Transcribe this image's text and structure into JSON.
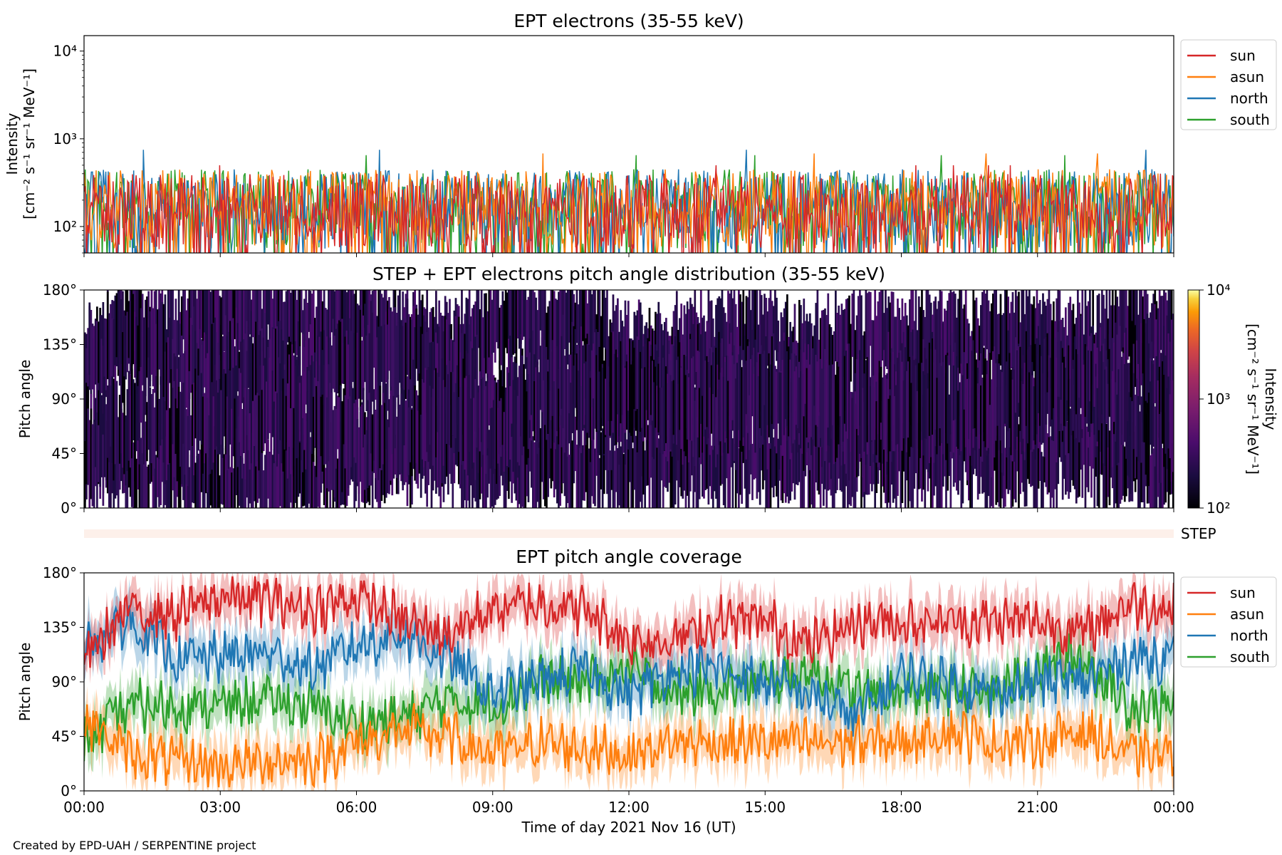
{
  "footer": {
    "credit": "Created by EPD-UAH / SERPENTINE project"
  },
  "x_axis": {
    "label": "Time of day 2021 Nov 16 (UT)",
    "ticks": [
      "00:00",
      "03:00",
      "06:00",
      "09:00",
      "12:00",
      "15:00",
      "18:00",
      "21:00",
      "00:00"
    ],
    "range_hours": [
      0,
      24
    ]
  },
  "colors": {
    "sun": "#d62728",
    "asun": "#ff7f0e",
    "north": "#1f77b4",
    "south": "#2ca02c",
    "step_strip": "#fdf0ea"
  },
  "chart_data": [
    {
      "type": "line",
      "panel": "intensity",
      "title": "EPT electrons (35-55 keV)",
      "ylabel": "Intensity",
      "ylabel_units": "[cm⁻² s⁻¹ sr⁻¹ MeV⁻¹]",
      "yscale": "log",
      "ylim": [
        50,
        15000
      ],
      "ytick_labels": [
        "10²",
        "10³",
        "10⁴"
      ],
      "ytick_values": [
        100,
        1000,
        10000
      ],
      "legend": [
        "sun",
        "asun",
        "north",
        "south"
      ],
      "legend_position": "outside right, top",
      "series_summary": [
        {
          "name": "sun",
          "typical_range": [
            55,
            400
          ],
          "peak": 500
        },
        {
          "name": "asun",
          "typical_range": [
            55,
            450
          ],
          "peak": 680
        },
        {
          "name": "north",
          "typical_range": [
            55,
            450
          ],
          "peak": 750
        },
        {
          "name": "south",
          "typical_range": [
            55,
            450
          ],
          "peak": 650
        }
      ]
    },
    {
      "type": "heatmap",
      "panel": "pad",
      "title": "STEP + EPT electrons pitch angle distribution (35-55 keV)",
      "ylabel": "Pitch angle",
      "ylim": [
        0,
        180
      ],
      "ytick_labels": [
        "0°",
        "45°",
        "90°",
        "135°",
        "180°"
      ],
      "ytick_values": [
        0,
        45,
        90,
        135,
        180
      ],
      "colorbar": {
        "label": "Intensity",
        "units": "[cm⁻² s⁻¹ sr⁻¹ MeV⁻¹]",
        "scale": "log",
        "range": [
          100,
          10000
        ],
        "tick_labels": [
          "10²",
          "10³",
          "10⁴"
        ],
        "colormap": "inferno"
      },
      "strip_label": "STEP"
    },
    {
      "type": "line",
      "panel": "coverage",
      "title": "EPT pitch angle coverage",
      "ylabel": "Pitch angle",
      "ylim": [
        0,
        180
      ],
      "ytick_labels": [
        "0°",
        "45°",
        "90°",
        "135°",
        "180°"
      ],
      "ytick_values": [
        0,
        45,
        90,
        135,
        180
      ],
      "legend": [
        "sun",
        "asun",
        "north",
        "south"
      ],
      "legend_position": "outside right, top",
      "series": [
        {
          "name": "sun",
          "x_hours": [
            0,
            1,
            2,
            3,
            4,
            5,
            6,
            7,
            8,
            9,
            10,
            11,
            12,
            13,
            14,
            15,
            16,
            17,
            18,
            19,
            20,
            21,
            22,
            23,
            24
          ],
          "values": [
            110,
            150,
            145,
            160,
            158,
            150,
            160,
            140,
            130,
            150,
            155,
            150,
            125,
            125,
            140,
            140,
            120,
            140,
            140,
            140,
            140,
            140,
            130,
            155,
            150
          ]
        },
        {
          "name": "asun",
          "x_hours": [
            0,
            1,
            2,
            3,
            4,
            5,
            6,
            7,
            8,
            9,
            10,
            11,
            12,
            13,
            14,
            15,
            16,
            17,
            18,
            19,
            20,
            21,
            22,
            23,
            24
          ],
          "values": [
            60,
            30,
            25,
            20,
            25,
            25,
            40,
            50,
            45,
            30,
            40,
            35,
            30,
            40,
            40,
            40,
            40,
            40,
            40,
            50,
            40,
            40,
            50,
            30,
            30
          ]
        },
        {
          "name": "north",
          "x_hours": [
            0,
            1,
            2,
            3,
            4,
            5,
            6,
            7,
            8,
            9,
            10,
            11,
            12,
            13,
            14,
            15,
            16,
            17,
            18,
            19,
            20,
            21,
            22,
            23,
            24
          ],
          "values": [
            120,
            140,
            110,
            110,
            115,
            100,
            120,
            130,
            110,
            80,
            90,
            100,
            80,
            100,
            100,
            90,
            80,
            60,
            95,
            90,
            80,
            90,
            90,
            110,
            110
          ]
        },
        {
          "name": "south",
          "x_hours": [
            0,
            1,
            2,
            3,
            4,
            5,
            6,
            7,
            8,
            9,
            10,
            11,
            12,
            13,
            14,
            15,
            16,
            17,
            18,
            19,
            20,
            21,
            22,
            23,
            24
          ],
          "values": [
            40,
            70,
            70,
            70,
            75,
            70,
            55,
            60,
            75,
            70,
            90,
            90,
            100,
            80,
            85,
            90,
            100,
            80,
            80,
            85,
            80,
            100,
            110,
            70,
            70
          ]
        }
      ]
    }
  ]
}
